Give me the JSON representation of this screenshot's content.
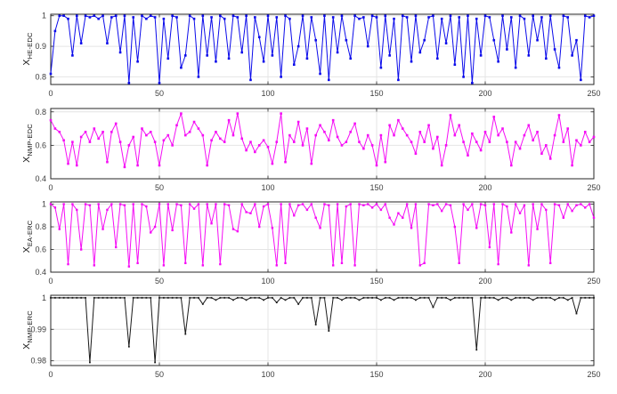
{
  "figure": {
    "background": "#ffffff",
    "axis_color": "#262626",
    "grid_color": "#e4e4e4",
    "tick_label_color": "#3d3d3d"
  },
  "chart_data": [
    {
      "type": "line",
      "series_name": "X_HE-EDC",
      "ylabel_main": "X",
      "ylabel_sub": "HE-EDC",
      "color": "#0b0bea",
      "marker": "square",
      "marker_size": 2.6,
      "grid": true,
      "legend": "none",
      "x_start": 0,
      "x_step": 2,
      "xlim": [
        0,
        250
      ],
      "ylim": [
        0.775,
        1.005
      ],
      "xticks": [
        0,
        50,
        100,
        150,
        200,
        250
      ],
      "yticks": [
        0.8,
        0.9,
        1
      ],
      "values": [
        0.81,
        0.95,
        1,
        1,
        0.99,
        0.87,
        1,
        0.91,
        1,
        0.995,
        1,
        0.99,
        1,
        0.91,
        0.995,
        1,
        0.88,
        1,
        0.78,
        0.995,
        0.85,
        1,
        0.99,
        1,
        0.995,
        0.78,
        0.99,
        0.86,
        1,
        0.995,
        0.83,
        0.87,
        1,
        0.99,
        0.8,
        1,
        0.87,
        0.995,
        0.85,
        1,
        0.99,
        0.86,
        1,
        0.995,
        0.88,
        1,
        0.79,
        0.995,
        0.93,
        0.85,
        1,
        0.87,
        0.995,
        0.8,
        1,
        0.99,
        0.84,
        0.9,
        1,
        0.86,
        0.995,
        0.92,
        0.81,
        1,
        0.79,
        0.995,
        0.88,
        1,
        0.92,
        0.86,
        1,
        0.99,
        0.995,
        0.9,
        1,
        0.995,
        0.83,
        1,
        0.87,
        0.99,
        0.79,
        1,
        0.995,
        0.85,
        1,
        0.88,
        0.92,
        0.995,
        1,
        0.86,
        0.99,
        0.91,
        1,
        0.84,
        0.995,
        0.8,
        1,
        0.78,
        0.99,
        0.87,
        1,
        0.995,
        0.92,
        0.85,
        1,
        0.89,
        0.995,
        0.83,
        1,
        0.99,
        0.87,
        1,
        0.92,
        0.995,
        0.86,
        1,
        0.89,
        0.83,
        1,
        0.995,
        0.87,
        0.92,
        0.79,
        1,
        0.995,
        1
      ]
    },
    {
      "type": "line",
      "series_name": "X_NMP-EDC",
      "ylabel_main": "X",
      "ylabel_sub": "NMP-EDC",
      "color": "#f50df5",
      "marker": "square",
      "marker_size": 2.6,
      "grid": true,
      "legend": "none",
      "x_start": 0,
      "x_step": 2,
      "xlim": [
        0,
        250
      ],
      "ylim": [
        0.4,
        0.82
      ],
      "xticks": [
        0,
        50,
        100,
        150,
        200,
        250
      ],
      "yticks": [
        0.4,
        0.6,
        0.8
      ],
      "values": [
        0.75,
        0.7,
        0.68,
        0.63,
        0.49,
        0.62,
        0.48,
        0.65,
        0.68,
        0.62,
        0.7,
        0.64,
        0.68,
        0.5,
        0.68,
        0.73,
        0.62,
        0.47,
        0.6,
        0.65,
        0.48,
        0.7,
        0.66,
        0.68,
        0.62,
        0.48,
        0.63,
        0.66,
        0.6,
        0.72,
        0.79,
        0.66,
        0.68,
        0.74,
        0.7,
        0.66,
        0.48,
        0.63,
        0.68,
        0.64,
        0.62,
        0.75,
        0.66,
        0.79,
        0.64,
        0.57,
        0.62,
        0.56,
        0.6,
        0.63,
        0.59,
        0.49,
        0.62,
        0.79,
        0.5,
        0.66,
        0.62,
        0.74,
        0.6,
        0.7,
        0.49,
        0.66,
        0.72,
        0.68,
        0.63,
        0.75,
        0.65,
        0.6,
        0.62,
        0.68,
        0.73,
        0.62,
        0.58,
        0.66,
        0.6,
        0.48,
        0.66,
        0.5,
        0.72,
        0.66,
        0.75,
        0.7,
        0.66,
        0.62,
        0.55,
        0.68,
        0.62,
        0.72,
        0.58,
        0.65,
        0.48,
        0.6,
        0.78,
        0.66,
        0.72,
        0.62,
        0.54,
        0.67,
        0.62,
        0.57,
        0.68,
        0.62,
        0.77,
        0.66,
        0.7,
        0.62,
        0.48,
        0.62,
        0.58,
        0.66,
        0.72,
        0.63,
        0.68,
        0.55,
        0.6,
        0.52,
        0.66,
        0.78,
        0.62,
        0.7,
        0.48,
        0.63,
        0.6,
        0.68,
        0.62,
        0.65
      ]
    },
    {
      "type": "line",
      "series_name": "X_EA-ERC",
      "ylabel_main": "X",
      "ylabel_sub": "EA-ERC",
      "color": "#f50df5",
      "marker": "square",
      "marker_size": 2.4,
      "grid": true,
      "legend": "none",
      "x_start": 0,
      "x_step": 2,
      "xlim": [
        0,
        250
      ],
      "ylim": [
        0.4,
        1.02
      ],
      "xticks": [
        0,
        50,
        100,
        150,
        200,
        250
      ],
      "yticks": [
        0.4,
        0.6,
        0.8,
        1
      ],
      "values": [
        1,
        0.97,
        0.78,
        1,
        0.47,
        1,
        0.95,
        0.6,
        1,
        0.99,
        0.46,
        1,
        0.78,
        0.95,
        1,
        0.62,
        1,
        0.99,
        0.45,
        1,
        0.48,
        1,
        0.98,
        0.75,
        0.8,
        1,
        0.46,
        1,
        0.77,
        1,
        0.99,
        0.48,
        1,
        0.96,
        1,
        0.46,
        1,
        0.83,
        1,
        0.47,
        1,
        0.99,
        0.78,
        0.76,
        1,
        0.93,
        0.92,
        1,
        0.8,
        0.98,
        1,
        0.79,
        0.46,
        1,
        0.48,
        1,
        0.9,
        0.99,
        1,
        0.95,
        1,
        0.88,
        0.79,
        1,
        0.99,
        0.46,
        1,
        0.48,
        0.98,
        1,
        0.46,
        1,
        0.99,
        1,
        0.97,
        1,
        0.95,
        1,
        0.88,
        0.82,
        0.92,
        0.88,
        1,
        0.79,
        1,
        0.46,
        0.48,
        1,
        0.99,
        1,
        0.94,
        1,
        0.99,
        0.8,
        0.48,
        1,
        0.95,
        1,
        0.79,
        1,
        0.99,
        0.62,
        1,
        0.47,
        1,
        0.98,
        0.75,
        1,
        0.92,
        0.99,
        0.46,
        1,
        0.78,
        1,
        0.95,
        0.48,
        1,
        0.99,
        0.88,
        1,
        0.94,
        0.99,
        1,
        0.97,
        1,
        0.88
      ]
    },
    {
      "type": "line",
      "series_name": "X_NMP-ERC",
      "ylabel_main": "X",
      "ylabel_sub": "NMP-ERC",
      "color": "#1a1a1a",
      "marker": "square",
      "marker_size": 1.8,
      "grid": true,
      "legend": "none",
      "x_start": 0,
      "x_step": 2,
      "xlim": [
        0,
        250
      ],
      "ylim": [
        0.9785,
        1.0008
      ],
      "xticks": [
        0,
        50,
        100,
        150,
        200,
        250
      ],
      "yticks": [
        0.98,
        0.99,
        1
      ],
      "values": [
        1,
        1,
        1,
        1,
        1,
        1,
        1,
        1,
        1,
        0.9795,
        1,
        1,
        1,
        1,
        1,
        1,
        1,
        1,
        0.9845,
        1,
        1,
        1,
        1,
        1,
        0.9795,
        1,
        1,
        1,
        1,
        1,
        1,
        0.9885,
        1,
        1,
        1,
        0.998,
        1,
        1,
        0.9993,
        1,
        1,
        1,
        0.9993,
        1,
        1,
        0.9993,
        1,
        1,
        1,
        0.9993,
        1,
        1,
        0.9985,
        1,
        0.9993,
        1,
        1,
        0.998,
        1,
        1,
        1,
        0.9915,
        1,
        1,
        0.9895,
        1,
        1,
        0.9993,
        1,
        1,
        1,
        0.9993,
        1,
        1,
        1,
        1,
        0.9993,
        1,
        1,
        0.9993,
        1,
        1,
        1,
        1,
        0.9993,
        1,
        1,
        1,
        0.997,
        1,
        1,
        1,
        0.9993,
        1,
        1,
        1,
        1,
        1,
        0.9835,
        1,
        1,
        1,
        1,
        0.9993,
        1,
        1,
        0.9993,
        1,
        1,
        1,
        1,
        0.9993,
        1,
        1,
        1,
        1,
        0.9993,
        1,
        1,
        0.9993,
        1,
        0.995,
        1,
        1,
        1,
        1
      ]
    }
  ]
}
